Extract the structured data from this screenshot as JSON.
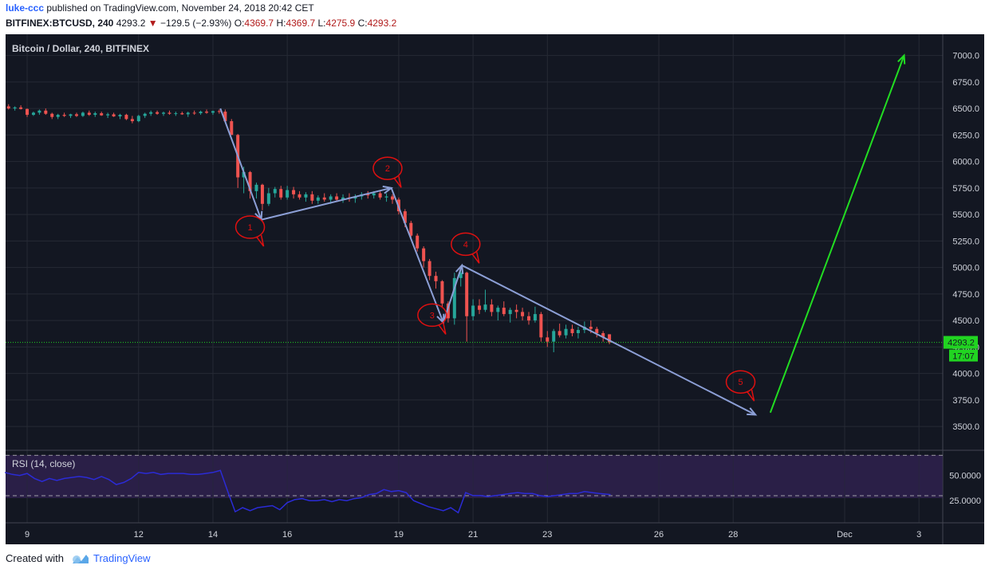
{
  "header": {
    "user": "luke-ccc",
    "published_text": "published on TradingView.com, November 24, 2018 20:42 CET",
    "symbol": "BITFINEX:BTCUSD, 240",
    "last": "4293.2",
    "change": "−129.5 (−2.93%)",
    "o_label": "O:",
    "o_value": "4369.7",
    "h_label": "H:",
    "h_value": "4369.7",
    "l_label": "L:",
    "l_value": "4275.9",
    "c_label": "C:",
    "c_value": "4293.2"
  },
  "footer": {
    "created_with": "Created with",
    "brand": "TradingView"
  },
  "colors": {
    "background": "#131722",
    "up": "#26a69a",
    "down": "#ef5350",
    "arrow": "#8c9fd6",
    "green_arrow": "#22dd22",
    "callout": "#e01010",
    "price_line": "#21d421",
    "rsi_line": "#2b2bd6",
    "rsi_band": "#2a1f47"
  },
  "chart_data": [
    {
      "type": "candlestick",
      "title": "Bitcoin / Dollar, 240, BITFINEX",
      "y_ticks": [
        "3500.0",
        "3750.0",
        "4000.0",
        "4250.0",
        "4500.0",
        "4750.0",
        "5000.0",
        "5250.0",
        "5500.0",
        "5750.0",
        "6000.0",
        "6250.0",
        "6500.0",
        "6750.0",
        "7000.0"
      ],
      "y_tick_values": [
        3500,
        3750,
        4000,
        4250,
        4500,
        4750,
        5000,
        5250,
        5500,
        5750,
        6000,
        6250,
        6500,
        6750,
        7000
      ],
      "ylim": [
        3275,
        7200
      ],
      "x_ticks": [
        "9",
        "12",
        "14",
        "16",
        "19",
        "21",
        "23",
        "26",
        "28",
        "Dec",
        "3"
      ],
      "x_tick_days": [
        9,
        12,
        14,
        16,
        19,
        21,
        23,
        26,
        28,
        31,
        33
      ],
      "xlim_days": [
        8.42,
        33.64
      ],
      "last_price": "4293.2",
      "last_price_value": 4293.2,
      "countdown": "17:07",
      "candles": [
        {
          "d": 8.5,
          "o": 6520,
          "h": 6540,
          "l": 6490,
          "c": 6500
        },
        {
          "d": 8.67,
          "o": 6500,
          "h": 6520,
          "l": 6480,
          "c": 6510
        },
        {
          "d": 8.83,
          "o": 6510,
          "h": 6530,
          "l": 6490,
          "c": 6495
        },
        {
          "d": 9.0,
          "o": 6495,
          "h": 6500,
          "l": 6420,
          "c": 6440
        },
        {
          "d": 9.17,
          "o": 6440,
          "h": 6470,
          "l": 6430,
          "c": 6460
        },
        {
          "d": 9.33,
          "o": 6460,
          "h": 6490,
          "l": 6440,
          "c": 6480
        },
        {
          "d": 9.5,
          "o": 6480,
          "h": 6500,
          "l": 6440,
          "c": 6450
        },
        {
          "d": 9.67,
          "o": 6450,
          "h": 6460,
          "l": 6400,
          "c": 6420
        },
        {
          "d": 9.83,
          "o": 6420,
          "h": 6450,
          "l": 6400,
          "c": 6440
        },
        {
          "d": 10.0,
          "o": 6440,
          "h": 6460,
          "l": 6420,
          "c": 6430
        },
        {
          "d": 10.17,
          "o": 6430,
          "h": 6450,
          "l": 6410,
          "c": 6445
        },
        {
          "d": 10.33,
          "o": 6445,
          "h": 6460,
          "l": 6420,
          "c": 6430
        },
        {
          "d": 10.5,
          "o": 6430,
          "h": 6470,
          "l": 6420,
          "c": 6460
        },
        {
          "d": 10.67,
          "o": 6460,
          "h": 6480,
          "l": 6430,
          "c": 6440
        },
        {
          "d": 10.83,
          "o": 6440,
          "h": 6470,
          "l": 6420,
          "c": 6455
        },
        {
          "d": 11.0,
          "o": 6455,
          "h": 6470,
          "l": 6430,
          "c": 6435
        },
        {
          "d": 11.17,
          "o": 6435,
          "h": 6460,
          "l": 6410,
          "c": 6445
        },
        {
          "d": 11.33,
          "o": 6445,
          "h": 6460,
          "l": 6420,
          "c": 6425
        },
        {
          "d": 11.5,
          "o": 6425,
          "h": 6450,
          "l": 6400,
          "c": 6440
        },
        {
          "d": 11.67,
          "o": 6440,
          "h": 6450,
          "l": 6390,
          "c": 6400
        },
        {
          "d": 11.83,
          "o": 6400,
          "h": 6430,
          "l": 6360,
          "c": 6380
        },
        {
          "d": 12.0,
          "o": 6380,
          "h": 6440,
          "l": 6370,
          "c": 6430
        },
        {
          "d": 12.17,
          "o": 6430,
          "h": 6460,
          "l": 6410,
          "c": 6450
        },
        {
          "d": 12.33,
          "o": 6450,
          "h": 6480,
          "l": 6430,
          "c": 6465
        },
        {
          "d": 12.5,
          "o": 6465,
          "h": 6480,
          "l": 6440,
          "c": 6450
        },
        {
          "d": 12.67,
          "o": 6450,
          "h": 6470,
          "l": 6430,
          "c": 6460
        },
        {
          "d": 12.83,
          "o": 6460,
          "h": 6480,
          "l": 6440,
          "c": 6450
        },
        {
          "d": 13.0,
          "o": 6450,
          "h": 6470,
          "l": 6430,
          "c": 6455
        },
        {
          "d": 13.17,
          "o": 6455,
          "h": 6470,
          "l": 6440,
          "c": 6445
        },
        {
          "d": 13.33,
          "o": 6445,
          "h": 6470,
          "l": 6420,
          "c": 6460
        },
        {
          "d": 13.5,
          "o": 6460,
          "h": 6480,
          "l": 6440,
          "c": 6455
        },
        {
          "d": 13.67,
          "o": 6455,
          "h": 6480,
          "l": 6440,
          "c": 6470
        },
        {
          "d": 13.83,
          "o": 6470,
          "h": 6490,
          "l": 6450,
          "c": 6460
        },
        {
          "d": 14.0,
          "o": 6460,
          "h": 6480,
          "l": 6440,
          "c": 6475
        },
        {
          "d": 14.17,
          "o": 6475,
          "h": 6490,
          "l": 6450,
          "c": 6470
        },
        {
          "d": 14.33,
          "o": 6470,
          "h": 6490,
          "l": 6400,
          "c": 6380
        },
        {
          "d": 14.5,
          "o": 6380,
          "h": 6400,
          "l": 6250,
          "c": 6250
        },
        {
          "d": 14.67,
          "o": 6250,
          "h": 6260,
          "l": 5750,
          "c": 5850
        },
        {
          "d": 14.83,
          "o": 5850,
          "h": 5950,
          "l": 5700,
          "c": 5900
        },
        {
          "d": 15.0,
          "o": 5900,
          "h": 5910,
          "l": 5650,
          "c": 5720
        },
        {
          "d": 15.17,
          "o": 5720,
          "h": 5800,
          "l": 5650,
          "c": 5780
        },
        {
          "d": 15.33,
          "o": 5780,
          "h": 5790,
          "l": 5540,
          "c": 5600
        },
        {
          "d": 15.5,
          "o": 5600,
          "h": 5750,
          "l": 5580,
          "c": 5700
        },
        {
          "d": 15.67,
          "o": 5700,
          "h": 5760,
          "l": 5660,
          "c": 5740
        },
        {
          "d": 15.83,
          "o": 5740,
          "h": 5770,
          "l": 5640,
          "c": 5660
        },
        {
          "d": 16.0,
          "o": 5660,
          "h": 5770,
          "l": 5640,
          "c": 5730
        },
        {
          "d": 16.17,
          "o": 5730,
          "h": 5760,
          "l": 5650,
          "c": 5690
        },
        {
          "d": 16.33,
          "o": 5690,
          "h": 5720,
          "l": 5640,
          "c": 5660
        },
        {
          "d": 16.5,
          "o": 5660,
          "h": 5710,
          "l": 5620,
          "c": 5690
        },
        {
          "d": 16.67,
          "o": 5690,
          "h": 5720,
          "l": 5600,
          "c": 5630
        },
        {
          "d": 16.83,
          "o": 5630,
          "h": 5680,
          "l": 5600,
          "c": 5660
        },
        {
          "d": 17.0,
          "o": 5660,
          "h": 5700,
          "l": 5620,
          "c": 5640
        },
        {
          "d": 17.17,
          "o": 5640,
          "h": 5690,
          "l": 5600,
          "c": 5670
        },
        {
          "d": 17.33,
          "o": 5670,
          "h": 5700,
          "l": 5620,
          "c": 5640
        },
        {
          "d": 17.5,
          "o": 5640,
          "h": 5690,
          "l": 5610,
          "c": 5660
        },
        {
          "d": 17.67,
          "o": 5660,
          "h": 5700,
          "l": 5620,
          "c": 5650
        },
        {
          "d": 17.83,
          "o": 5650,
          "h": 5690,
          "l": 5610,
          "c": 5670
        },
        {
          "d": 18.0,
          "o": 5670,
          "h": 5710,
          "l": 5640,
          "c": 5690
        },
        {
          "d": 18.17,
          "o": 5690,
          "h": 5720,
          "l": 5650,
          "c": 5680
        },
        {
          "d": 18.33,
          "o": 5680,
          "h": 5720,
          "l": 5650,
          "c": 5700
        },
        {
          "d": 18.5,
          "o": 5700,
          "h": 5720,
          "l": 5640,
          "c": 5660
        },
        {
          "d": 18.67,
          "o": 5660,
          "h": 5700,
          "l": 5620,
          "c": 5670
        },
        {
          "d": 18.83,
          "o": 5670,
          "h": 5690,
          "l": 5600,
          "c": 5640
        },
        {
          "d": 19.0,
          "o": 5640,
          "h": 5660,
          "l": 5500,
          "c": 5530
        },
        {
          "d": 19.17,
          "o": 5530,
          "h": 5550,
          "l": 5380,
          "c": 5420
        },
        {
          "d": 19.33,
          "o": 5420,
          "h": 5440,
          "l": 5260,
          "c": 5300
        },
        {
          "d": 19.5,
          "o": 5300,
          "h": 5320,
          "l": 5150,
          "c": 5180
        },
        {
          "d": 19.67,
          "o": 5180,
          "h": 5200,
          "l": 5000,
          "c": 5060
        },
        {
          "d": 19.83,
          "o": 5060,
          "h": 5080,
          "l": 4880,
          "c": 4920
        },
        {
          "d": 20.0,
          "o": 4920,
          "h": 4960,
          "l": 4800,
          "c": 4870
        },
        {
          "d": 20.17,
          "o": 4870,
          "h": 4880,
          "l": 4620,
          "c": 4660
        },
        {
          "d": 20.33,
          "o": 4660,
          "h": 4680,
          "l": 4480,
          "c": 4520
        },
        {
          "d": 20.5,
          "o": 4520,
          "h": 4950,
          "l": 4460,
          "c": 4900
        },
        {
          "d": 20.67,
          "o": 4900,
          "h": 4990,
          "l": 4820,
          "c": 4950
        },
        {
          "d": 20.83,
          "o": 4950,
          "h": 4960,
          "l": 4300,
          "c": 4540
        },
        {
          "d": 21.0,
          "o": 4540,
          "h": 4700,
          "l": 4500,
          "c": 4640
        },
        {
          "d": 21.17,
          "o": 4640,
          "h": 4700,
          "l": 4560,
          "c": 4600
        },
        {
          "d": 21.33,
          "o": 4600,
          "h": 4790,
          "l": 4580,
          "c": 4650
        },
        {
          "d": 21.5,
          "o": 4650,
          "h": 4700,
          "l": 4540,
          "c": 4580
        },
        {
          "d": 21.67,
          "o": 4580,
          "h": 4640,
          "l": 4500,
          "c": 4620
        },
        {
          "d": 21.83,
          "o": 4620,
          "h": 4680,
          "l": 4540,
          "c": 4560
        },
        {
          "d": 22.0,
          "o": 4560,
          "h": 4620,
          "l": 4480,
          "c": 4600
        },
        {
          "d": 22.17,
          "o": 4600,
          "h": 4650,
          "l": 4520,
          "c": 4580
        },
        {
          "d": 22.33,
          "o": 4580,
          "h": 4620,
          "l": 4500,
          "c": 4540
        },
        {
          "d": 22.5,
          "o": 4540,
          "h": 4580,
          "l": 4460,
          "c": 4500
        },
        {
          "d": 22.67,
          "o": 4500,
          "h": 4630,
          "l": 4480,
          "c": 4560
        },
        {
          "d": 22.83,
          "o": 4560,
          "h": 4580,
          "l": 4300,
          "c": 4340
        },
        {
          "d": 23.0,
          "o": 4340,
          "h": 4400,
          "l": 4250,
          "c": 4300
        },
        {
          "d": 23.17,
          "o": 4300,
          "h": 4420,
          "l": 4200,
          "c": 4400
        },
        {
          "d": 23.33,
          "o": 4400,
          "h": 4470,
          "l": 4340,
          "c": 4360
        },
        {
          "d": 23.5,
          "o": 4360,
          "h": 4460,
          "l": 4330,
          "c": 4420
        },
        {
          "d": 23.67,
          "o": 4420,
          "h": 4460,
          "l": 4350,
          "c": 4380
        },
        {
          "d": 23.83,
          "o": 4380,
          "h": 4440,
          "l": 4330,
          "c": 4410
        },
        {
          "d": 24.0,
          "o": 4410,
          "h": 4490,
          "l": 4380,
          "c": 4440
        },
        {
          "d": 24.17,
          "o": 4440,
          "h": 4500,
          "l": 4380,
          "c": 4420
        },
        {
          "d": 24.33,
          "o": 4420,
          "h": 4440,
          "l": 4340,
          "c": 4380
        },
        {
          "d": 24.5,
          "o": 4380,
          "h": 4400,
          "l": 4300,
          "c": 4340
        },
        {
          "d": 24.67,
          "o": 4369.7,
          "h": 4369.7,
          "l": 4275.9,
          "c": 4293.2
        }
      ],
      "annotations": {
        "callout_labels": [
          "1",
          "2",
          "3",
          "4",
          "5"
        ],
        "callout_points": [
          {
            "label": "1",
            "d": 15.0,
            "price": 5380
          },
          {
            "label": "2",
            "d": 18.7,
            "price": 5935
          },
          {
            "label": "3",
            "d": 19.9,
            "price": 4550
          },
          {
            "label": "4",
            "d": 20.8,
            "price": 5220
          },
          {
            "label": "5",
            "d": 28.2,
            "price": 3920
          }
        ],
        "wave_path": [
          {
            "d": 14.2,
            "price": 6500
          },
          {
            "d": 15.3,
            "price": 5450
          },
          {
            "d": 18.8,
            "price": 5750
          },
          {
            "d": 20.2,
            "price": 4480
          },
          {
            "d": 20.7,
            "price": 5020
          },
          {
            "d": 28.6,
            "price": 3610
          }
        ],
        "projection_arrow": [
          {
            "d": 29.0,
            "price": 3630
          },
          {
            "d": 32.6,
            "price": 7000
          }
        ]
      }
    },
    {
      "type": "line",
      "title": "RSI (14, close)",
      "y_ticks": [
        "25.0000",
        "50.0000"
      ],
      "y_tick_values": [
        25,
        50
      ],
      "ylim": [
        3,
        75
      ],
      "band": [
        30,
        70
      ],
      "x_days": [
        8.4,
        8.6,
        8.8,
        9.0,
        9.2,
        9.4,
        9.6,
        9.8,
        10.0,
        10.2,
        10.4,
        10.6,
        10.8,
        11.0,
        11.2,
        11.4,
        11.6,
        11.8,
        12.0,
        12.2,
        12.4,
        12.6,
        12.8,
        13.0,
        13.2,
        13.4,
        13.6,
        13.8,
        14.0,
        14.2,
        14.4,
        14.6,
        14.8,
        15.0,
        15.2,
        15.4,
        15.6,
        15.8,
        16.0,
        16.2,
        16.4,
        16.6,
        16.8,
        17.0,
        17.2,
        17.4,
        17.6,
        17.8,
        18.0,
        18.2,
        18.4,
        18.6,
        18.8,
        19.0,
        19.2,
        19.4,
        19.6,
        19.8,
        20.0,
        20.2,
        20.4,
        20.6,
        20.8,
        21.0,
        21.2,
        21.4,
        21.6,
        21.8,
        22.0,
        22.2,
        22.4,
        22.6,
        22.8,
        23.0,
        23.2,
        23.4,
        23.6,
        23.8,
        24.0,
        24.2,
        24.4,
        24.7
      ],
      "values": [
        53,
        51,
        50,
        52,
        47,
        44,
        47,
        45,
        47,
        48,
        49,
        48,
        46,
        49,
        46,
        41,
        43,
        47,
        53,
        52,
        53,
        51,
        52,
        52,
        52,
        51,
        51,
        52,
        53,
        55,
        34,
        14,
        18,
        15,
        18,
        19,
        20,
        16,
        23,
        26,
        27,
        25,
        25,
        26,
        24,
        26,
        25,
        27,
        28,
        31,
        32,
        36,
        34,
        35,
        33,
        25,
        22,
        19,
        17,
        15,
        18,
        13,
        33,
        30,
        30,
        29,
        30,
        31,
        32,
        33,
        32,
        32,
        30,
        29,
        30,
        31,
        32,
        32,
        34,
        33,
        32,
        31
      ]
    }
  ]
}
